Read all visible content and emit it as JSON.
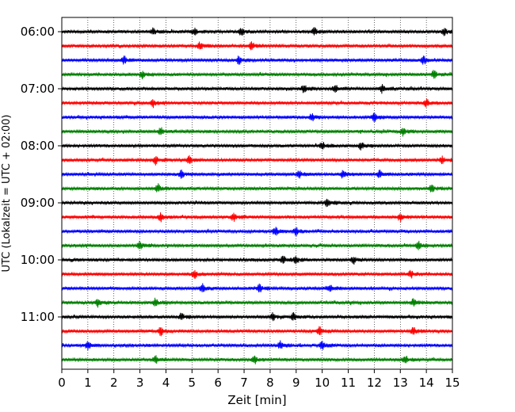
{
  "chart_data": {
    "type": "line",
    "title": "",
    "xlabel": "Zeit  [min]",
    "ylabel": "UTC (Lokalzeit = UTC + 02:00)",
    "xlim": [
      0,
      15
    ],
    "x_ticks": [
      "0",
      "1",
      "2",
      "3",
      "4",
      "5",
      "6",
      "7",
      "8",
      "9",
      "10",
      "11",
      "12",
      "13",
      "14",
      "15"
    ],
    "y_tick_labels": [
      "06:00",
      "07:00",
      "08:00",
      "09:00",
      "10:00",
      "11:00"
    ],
    "vertical_grid": true,
    "grid_style": "dotted",
    "trace_interval_minutes": 15,
    "trace_colors": [
      "#000000",
      "#ff0000",
      "#0000ff",
      "#008000"
    ],
    "series": [
      {
        "start": "06:00",
        "color": "#000000",
        "events_min": [
          3.5,
          5.1,
          6.9,
          9.7,
          14.7
        ]
      },
      {
        "start": "06:15",
        "color": "#ff0000",
        "events_min": [
          5.3,
          7.3
        ]
      },
      {
        "start": "06:30",
        "color": "#0000ff",
        "events_min": [
          2.4,
          6.8,
          13.9
        ]
      },
      {
        "start": "06:45",
        "color": "#008000",
        "events_min": [
          3.1,
          14.3
        ]
      },
      {
        "start": "07:00",
        "color": "#000000",
        "events_min": [
          9.3,
          10.5,
          12.3
        ]
      },
      {
        "start": "07:15",
        "color": "#ff0000",
        "events_min": [
          3.5,
          14.0
        ]
      },
      {
        "start": "07:30",
        "color": "#0000ff",
        "events_min": [
          9.6,
          12.0
        ]
      },
      {
        "start": "07:45",
        "color": "#008000",
        "events_min": [
          3.8,
          13.1
        ]
      },
      {
        "start": "08:00",
        "color": "#000000",
        "events_min": [
          10.0,
          11.5
        ]
      },
      {
        "start": "08:15",
        "color": "#ff0000",
        "events_min": [
          3.6,
          4.9,
          14.6
        ]
      },
      {
        "start": "08:30",
        "color": "#0000ff",
        "events_min": [
          4.6,
          9.1,
          10.8,
          12.2
        ]
      },
      {
        "start": "08:45",
        "color": "#008000",
        "events_min": [
          3.7,
          14.2
        ]
      },
      {
        "start": "09:00",
        "color": "#000000",
        "events_min": [
          10.2
        ]
      },
      {
        "start": "09:15",
        "color": "#ff0000",
        "events_min": [
          3.8,
          6.6,
          13.0
        ]
      },
      {
        "start": "09:30",
        "color": "#0000ff",
        "events_min": [
          8.2,
          9.0
        ]
      },
      {
        "start": "09:45",
        "color": "#008000",
        "events_min": [
          3.0,
          13.7
        ]
      },
      {
        "start": "10:00",
        "color": "#000000",
        "events_min": [
          8.5,
          9.0,
          11.2
        ]
      },
      {
        "start": "10:15",
        "color": "#ff0000",
        "events_min": [
          5.1,
          13.4
        ]
      },
      {
        "start": "10:30",
        "color": "#0000ff",
        "events_min": [
          5.4,
          7.6,
          10.3
        ]
      },
      {
        "start": "10:45",
        "color": "#008000",
        "events_min": [
          1.4,
          3.6,
          13.5
        ]
      },
      {
        "start": "11:00",
        "color": "#000000",
        "events_min": [
          4.6,
          8.1,
          8.9
        ]
      },
      {
        "start": "11:15",
        "color": "#ff0000",
        "events_min": [
          3.8,
          9.9,
          13.5
        ]
      },
      {
        "start": "11:30",
        "color": "#0000ff",
        "events_min": [
          1.0,
          8.4,
          10.0
        ]
      },
      {
        "start": "11:45",
        "color": "#008000",
        "events_min": [
          3.6,
          7.4,
          13.2
        ]
      }
    ]
  }
}
